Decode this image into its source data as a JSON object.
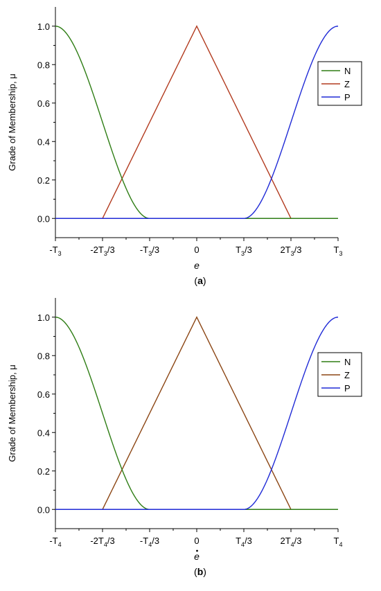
{
  "chart_data": [
    {
      "panel_label": "a",
      "type": "line",
      "ylabel": "Grade of Membership, μ",
      "xlabel": "e",
      "xlabel_has_dot": false,
      "xlim": [
        -3,
        3
      ],
      "ylim": [
        -0.1,
        1.1
      ],
      "grid": false,
      "legend_position": "top-right",
      "x_ticks": [
        {
          "value": -3,
          "base": "-T",
          "sub": "3",
          "tail": ""
        },
        {
          "value": -2,
          "base": "-2T",
          "sub": "3",
          "tail": "/3"
        },
        {
          "value": -1,
          "base": "-T",
          "sub": "3",
          "tail": "/3"
        },
        {
          "value": 0,
          "base": "0",
          "sub": "",
          "tail": ""
        },
        {
          "value": 1,
          "base": "T",
          "sub": "3",
          "tail": "/3"
        },
        {
          "value": 2,
          "base": "2T",
          "sub": "3",
          "tail": "/3"
        },
        {
          "value": 3,
          "base": "T",
          "sub": "3",
          "tail": ""
        }
      ],
      "y_ticks": [
        "0.0",
        "0.2",
        "0.4",
        "0.6",
        "0.8",
        "1.0"
      ],
      "series": [
        {
          "name": "N",
          "color": "#2e7d14",
          "curve": "sigmoid-falling",
          "x": [
            -3,
            -2.5,
            -2,
            -1.5,
            -1,
            3
          ],
          "y": [
            1.0,
            0.85,
            0.5,
            0.15,
            0.0,
            0.0
          ]
        },
        {
          "name": "Z",
          "color": "#b23a1e",
          "curve": "triangle",
          "x": [
            -3,
            -2,
            0,
            2,
            3
          ],
          "y": [
            0.0,
            0.0,
            1.0,
            0.0,
            0.0
          ]
        },
        {
          "name": "P",
          "color": "#1f2ad6",
          "curve": "sigmoid-rising",
          "x": [
            -3,
            1,
            1.5,
            2,
            2.5,
            3
          ],
          "y": [
            0.0,
            0.0,
            0.15,
            0.5,
            0.85,
            1.0
          ]
        }
      ]
    },
    {
      "panel_label": "b",
      "type": "line",
      "ylabel": "Grade of Membership, μ",
      "xlabel": "e",
      "xlabel_has_dot": true,
      "xlim": [
        -3,
        3
      ],
      "ylim": [
        -0.1,
        1.1
      ],
      "grid": false,
      "legend_position": "top-right",
      "x_ticks": [
        {
          "value": -3,
          "base": "-T",
          "sub": "4",
          "tail": ""
        },
        {
          "value": -2,
          "base": "-2T",
          "sub": "4",
          "tail": "/3"
        },
        {
          "value": -1,
          "base": "-T",
          "sub": "4",
          "tail": "/3"
        },
        {
          "value": 0,
          "base": "0",
          "sub": "",
          "tail": ""
        },
        {
          "value": 1,
          "base": "T",
          "sub": "4",
          "tail": "/3"
        },
        {
          "value": 2,
          "base": "2T",
          "sub": "4",
          "tail": "/3"
        },
        {
          "value": 3,
          "base": "T",
          "sub": "4",
          "tail": ""
        }
      ],
      "y_ticks": [
        "0.0",
        "0.2",
        "0.4",
        "0.6",
        "0.8",
        "1.0"
      ],
      "series": [
        {
          "name": "N",
          "color": "#2e7d14",
          "curve": "sigmoid-falling",
          "x": [
            -3,
            -2.5,
            -2,
            -1.5,
            -1,
            3
          ],
          "y": [
            1.0,
            0.85,
            0.5,
            0.15,
            0.0,
            0.0
          ]
        },
        {
          "name": "Z",
          "color": "#8b4513",
          "curve": "triangle",
          "x": [
            -3,
            -2,
            0,
            2,
            3
          ],
          "y": [
            0.0,
            0.0,
            1.0,
            0.0,
            0.0
          ]
        },
        {
          "name": "P",
          "color": "#1f2ad6",
          "curve": "sigmoid-rising",
          "x": [
            -3,
            1,
            1.5,
            2,
            2.5,
            3
          ],
          "y": [
            0.0,
            0.0,
            0.15,
            0.5,
            0.85,
            1.0
          ]
        }
      ]
    }
  ]
}
